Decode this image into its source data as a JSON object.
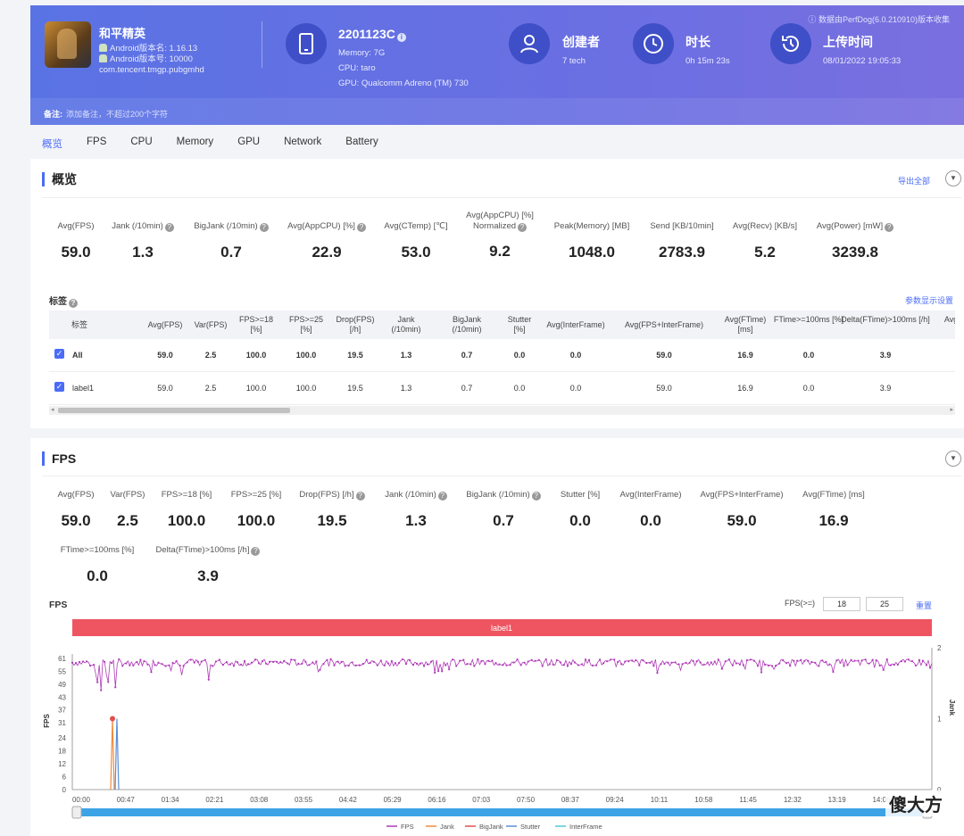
{
  "header": {
    "game_name": "和平精英",
    "android_version": "Android版本名: 1.16.13",
    "android_code": "Android版本号: 10000",
    "package": "com.tencent.tmgp.pubgmhd",
    "device": "2201123C",
    "memory": "Memory: 7G",
    "cpu": "CPU: taro",
    "gpu": "GPU: Qualcomm Adreno (TM) 730",
    "creator_title": "创建者",
    "creator": "7 tech",
    "duration_title": "时长",
    "duration": "0h 15m 23s",
    "upload_title": "上传时间",
    "upload_time": "08/01/2022 19:05:33",
    "source_note": "数据由PerfDog(6.0.210910)版本收集",
    "remark_label": "备注:",
    "remark_placeholder": "添加备注，不超过200个字符"
  },
  "tabs": [
    "概览",
    "FPS",
    "CPU",
    "Memory",
    "GPU",
    "Network",
    "Battery"
  ],
  "overview": {
    "title": "概览",
    "export": "导出全部",
    "stats": [
      {
        "label": "Avg(FPS)",
        "value": "59.0",
        "help": false
      },
      {
        "label": "Jank (/10min)",
        "value": "1.3",
        "help": true
      },
      {
        "label": "BigJank (/10min)",
        "value": "0.7",
        "help": true
      },
      {
        "label": "Avg(AppCPU) [%]",
        "value": "22.9",
        "help": true
      },
      {
        "label": "Avg(CTemp) [℃]",
        "value": "53.0",
        "help": false
      },
      {
        "label": "Avg(AppCPU) [%] Normalized",
        "value": "9.2",
        "help": true
      },
      {
        "label": "Peak(Memory) [MB]",
        "value": "1048.0",
        "help": false
      },
      {
        "label": "Send [KB/10min]",
        "value": "2783.9",
        "help": false
      },
      {
        "label": "Avg(Recv) [KB/s]",
        "value": "5.2",
        "help": false
      },
      {
        "label": "Avg(Power) [mW]",
        "value": "3239.8",
        "help": true
      }
    ],
    "tags_title": "标签",
    "param_settings": "参数显示设置",
    "table": {
      "headers": [
        "标签",
        "Avg(FPS)",
        "Var(FPS)",
        "FPS>=18 [%]",
        "FPS>=25 [%]",
        "Drop(FPS) [/h]",
        "Jank (/10min)",
        "BigJank (/10min)",
        "Stutter [%]",
        "Avg(InterFrame)",
        "Avg(FPS+InterFrame)",
        "Avg(FTime) [ms]",
        "FTime>=100ms [%]",
        "Delta(FTime)>100ms [/h]",
        "Avg("
      ],
      "rows": [
        [
          "All",
          "59.0",
          "2.5",
          "100.0",
          "100.0",
          "19.5",
          "1.3",
          "0.7",
          "0.0",
          "0.0",
          "59.0",
          "16.9",
          "0.0",
          "3.9"
        ],
        [
          "label1",
          "59.0",
          "2.5",
          "100.0",
          "100.0",
          "19.5",
          "1.3",
          "0.7",
          "0.0",
          "0.0",
          "59.0",
          "16.9",
          "0.0",
          "3.9"
        ]
      ]
    }
  },
  "fps_section": {
    "title": "FPS",
    "stats": [
      {
        "label": "Avg(FPS)",
        "value": "59.0",
        "help": false
      },
      {
        "label": "Var(FPS)",
        "value": "2.5",
        "help": false
      },
      {
        "label": "FPS>=18 [%]",
        "value": "100.0",
        "help": false
      },
      {
        "label": "FPS>=25 [%]",
        "value": "100.0",
        "help": false
      },
      {
        "label": "Drop(FPS) [/h]",
        "value": "19.5",
        "help": true
      },
      {
        "label": "Jank (/10min)",
        "value": "1.3",
        "help": true
      },
      {
        "label": "BigJank (/10min)",
        "value": "0.7",
        "help": true
      },
      {
        "label": "Stutter [%]",
        "value": "0.0",
        "help": false
      },
      {
        "label": "Avg(InterFrame)",
        "value": "0.0",
        "help": false
      },
      {
        "label": "Avg(FPS+InterFrame)",
        "value": "59.0",
        "help": false
      },
      {
        "label": "Avg(FTime) [ms]",
        "value": "16.9",
        "help": false
      },
      {
        "label": "FTime>=100ms [%]",
        "value": "0.0",
        "help": false
      },
      {
        "label": "Delta(FTime)>100ms [/h]",
        "value": "3.9",
        "help": true
      }
    ],
    "chart_label": "FPS",
    "threshold_label": "FPS(>=)",
    "threshold_1": "18",
    "threshold_2": "25",
    "reset": "重置",
    "band_label": "label1"
  },
  "chart_data": {
    "type": "line",
    "ylabel": "FPS",
    "y2label": "Jank",
    "yticks": [
      0,
      6,
      12,
      18,
      24,
      31,
      37,
      43,
      49,
      55,
      61
    ],
    "y2ticks": [
      0,
      1,
      2
    ],
    "xticks": [
      "00:00",
      "00:47",
      "01:34",
      "02:21",
      "03:08",
      "03:55",
      "04:42",
      "05:29",
      "06:16",
      "07:03",
      "07:50",
      "08:37",
      "09:24",
      "10:11",
      "10:58",
      "11:45",
      "12:32",
      "13:19",
      "14:06"
    ],
    "series": [
      {
        "name": "FPS",
        "approx_value": 59,
        "min_dip": 45,
        "color": "#b03ab8"
      },
      {
        "name": "Jank",
        "values_nonzero": [
          {
            "x": "00:47",
            "y": 1
          }
        ],
        "color": "#f08a3c"
      },
      {
        "name": "BigJank",
        "values_nonzero": [
          {
            "x": "00:47",
            "y": 1
          }
        ],
        "color": "#e0504c"
      },
      {
        "name": "Stutter",
        "color": "#5a8fd8"
      },
      {
        "name": "InterFrame",
        "color": "#4fc9d6"
      }
    ],
    "band_color": "#ee5561"
  },
  "watermark": "傻大方"
}
